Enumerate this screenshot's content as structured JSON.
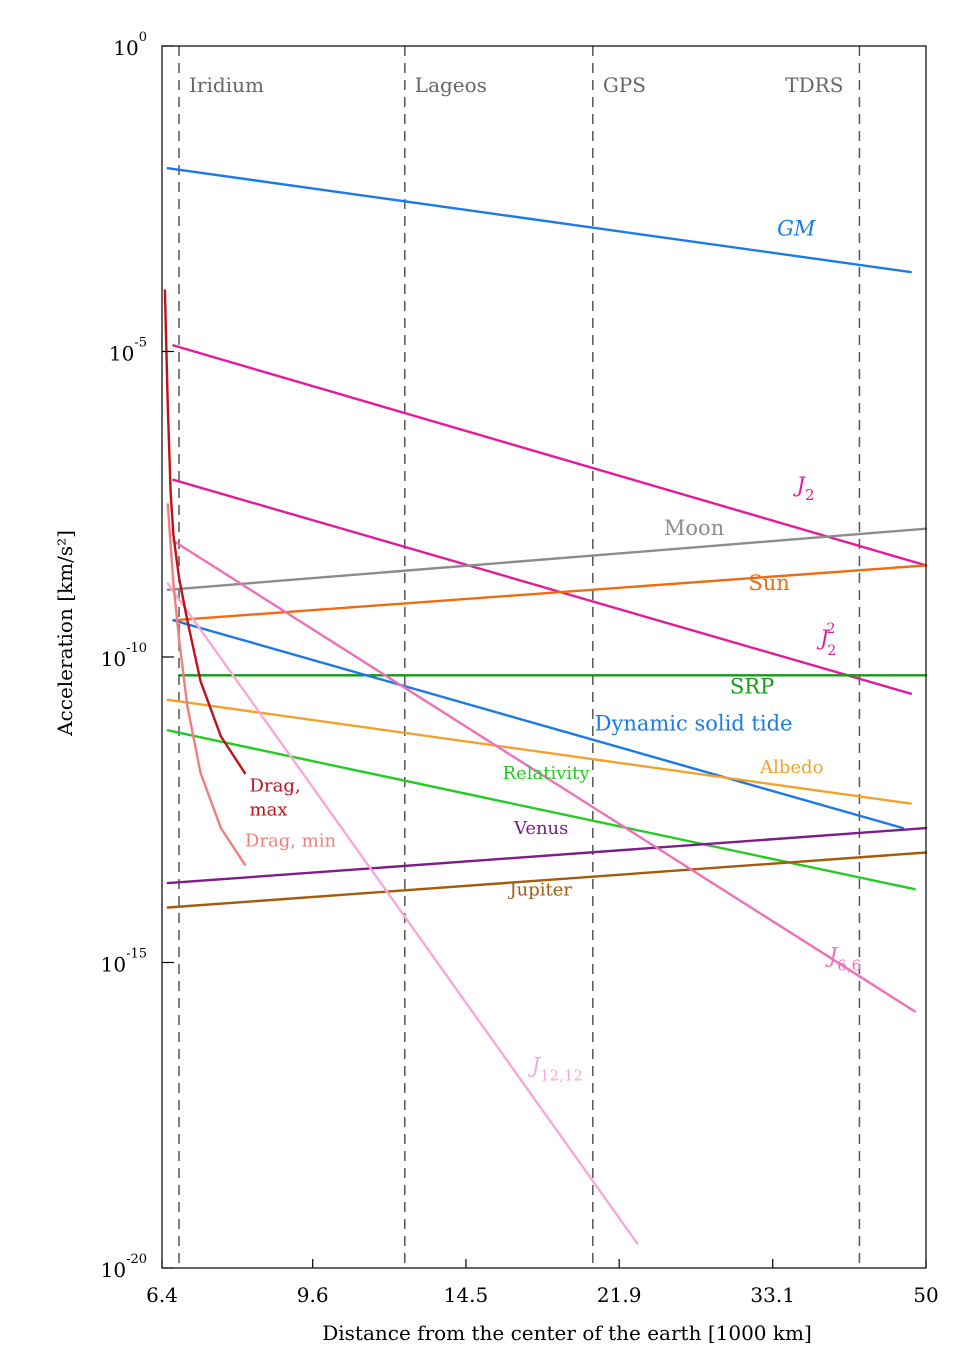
{
  "chart_data": {
    "type": "line",
    "xlabel": "Distance from the center of the earth [1000 km]",
    "ylabel": "Acceleration [km/s²]",
    "x_scale": "log",
    "y_scale": "log",
    "xlim": [
      6.4,
      50
    ],
    "ylim_exponent": [
      -20,
      0
    ],
    "x_ticks": [
      {
        "value": 6.4,
        "label": "6.4"
      },
      {
        "value": 9.6,
        "label": "9.6"
      },
      {
        "value": 14.5,
        "label": "14.5"
      },
      {
        "value": 21.9,
        "label": "21.9"
      },
      {
        "value": 33.1,
        "label": "33.1"
      },
      {
        "value": 50,
        "label": "50"
      }
    ],
    "y_ticks": [
      {
        "exp": 0,
        "base": "10",
        "sup": "0"
      },
      {
        "exp": -5,
        "base": "10",
        "sup": "-5"
      },
      {
        "exp": -10,
        "base": "10",
        "sup": "-10"
      },
      {
        "exp": -15,
        "base": "10",
        "sup": "-15"
      },
      {
        "exp": -20,
        "base": "10",
        "sup": "-20"
      }
    ],
    "orbits": [
      {
        "name": "Iridium",
        "x": 6.7
      },
      {
        "name": "Lageos",
        "x": 12.3
      },
      {
        "name": "GPS",
        "x": 20.4
      },
      {
        "name": "TDRS",
        "x": 41.8
      }
    ],
    "series": [
      {
        "name": "GM",
        "label": "GM",
        "label_sub": "",
        "label_sup": "",
        "italic": true,
        "color": "#1a7ae8",
        "x": [
          6.5,
          48
        ],
        "y": [
          -2.0,
          -3.7
        ],
        "label_pos": [
          33.5,
          -3.1
        ]
      },
      {
        "name": "J2",
        "label": "J",
        "label_sub": "2",
        "label_sup": "",
        "italic": true,
        "color": "#e8179d",
        "x": [
          6.6,
          50
        ],
        "y": [
          -4.9,
          -8.5
        ],
        "label_pos": [
          35.3,
          -7.3
        ]
      },
      {
        "name": "J2^2",
        "label": "J",
        "label_sub": "2",
        "label_sup": "2",
        "italic": true,
        "color": "#e01c9b",
        "x": [
          6.6,
          48
        ],
        "y": [
          -7.1,
          -10.6
        ],
        "label_pos": [
          37.6,
          -9.8
        ]
      },
      {
        "name": "Moon",
        "label": "Moon",
        "label_sub": "",
        "label_sup": "",
        "italic": false,
        "color": "#8c8c8c",
        "x": [
          6.5,
          50
        ],
        "y": [
          -8.9,
          -7.9
        ],
        "label_pos": [
          24.7,
          -8.0
        ]
      },
      {
        "name": "Sun",
        "label": "Sun",
        "label_sub": "",
        "label_sup": "",
        "italic": false,
        "color": "#f06a10",
        "x": [
          6.6,
          50
        ],
        "y": [
          -9.4,
          -8.5
        ],
        "label_pos": [
          31.0,
          -8.9
        ]
      },
      {
        "name": "SRP",
        "label": "SRP",
        "label_sub": "",
        "label_sup": "",
        "italic": false,
        "color": "#159a15",
        "x": [
          6.7,
          50
        ],
        "y": [
          -10.3,
          -10.3
        ],
        "label_pos": [
          29.5,
          -10.6
        ]
      },
      {
        "name": "Dynamic solid tide",
        "label": "Dynamic solid tide",
        "label_sub": "",
        "label_sup": "",
        "italic": false,
        "color": "#1a7ae8",
        "x": [
          6.6,
          47
        ],
        "y": [
          -9.4,
          -12.8
        ],
        "label_pos": [
          20.5,
          -11.2
        ]
      },
      {
        "name": "Albedo",
        "label": "Albedo",
        "label_sub": "",
        "label_sup": "",
        "italic": false,
        "color": "#f2a12a",
        "x": [
          6.5,
          48
        ],
        "y": [
          -10.7,
          -12.4
        ],
        "label_pos": [
          32.0,
          -11.9
        ]
      },
      {
        "name": "Relativity",
        "label": "Relativity",
        "label_sub": "",
        "label_sup": "",
        "italic": false,
        "color": "#22cc22",
        "x": [
          6.5,
          48.5
        ],
        "y": [
          -11.2,
          -13.8
        ],
        "label_pos": [
          16.0,
          -12.0
        ]
      },
      {
        "name": "Venus",
        "label": "Venus",
        "label_sub": "",
        "label_sup": "",
        "italic": false,
        "color": "#801b8a",
        "x": [
          6.5,
          50
        ],
        "y": [
          -13.7,
          -12.8
        ],
        "label_pos": [
          16.5,
          -12.9
        ]
      },
      {
        "name": "Jupiter",
        "label": "Jupiter",
        "label_sub": "",
        "label_sup": "",
        "italic": false,
        "color": "#a55a0c",
        "x": [
          6.5,
          50
        ],
        "y": [
          -14.1,
          -13.2
        ],
        "label_pos": [
          16.3,
          -13.9
        ]
      },
      {
        "name": "J6,6",
        "label": "J",
        "label_sub": "6,6",
        "label_sup": "",
        "italic": true,
        "color": "#ef70b8",
        "x": [
          6.6,
          48.5
        ],
        "y": [
          -8.1,
          -15.8
        ],
        "label_pos": [
          38.5,
          -15.0
        ]
      },
      {
        "name": "J12,12",
        "label": "J",
        "label_sub": "12,12",
        "label_sup": "",
        "italic": true,
        "color": "#f7a8d8",
        "x": [
          6.5,
          23
        ],
        "y": [
          -8.8,
          -19.6
        ],
        "label_pos": [
          17.3,
          -16.8
        ]
      },
      {
        "name": "Drag, max",
        "label": "Drag,",
        "label2": "max",
        "label_sub": "",
        "label_sup": "",
        "italic": false,
        "color": "#c0101a",
        "x": [
          6.45,
          6.5,
          6.55,
          6.6,
          6.7,
          6.85,
          7.1,
          7.5,
          8.0
        ],
        "y": [
          -4.0,
          -5.9,
          -7.3,
          -8.0,
          -8.7,
          -9.4,
          -10.4,
          -11.3,
          -11.9
        ],
        "label_pos": [
          8.1,
          -12.2
        ]
      },
      {
        "name": "Drag, min",
        "label": "Drag, min",
        "label_sub": "",
        "label_sup": "",
        "italic": false,
        "color": "#f07e7e",
        "x": [
          6.5,
          6.6,
          6.7,
          6.85,
          7.1,
          7.5,
          8.0
        ],
        "y": [
          -7.5,
          -8.8,
          -9.7,
          -10.8,
          -11.9,
          -12.8,
          -13.4
        ],
        "label_pos": [
          8.0,
          -13.1
        ]
      }
    ]
  }
}
